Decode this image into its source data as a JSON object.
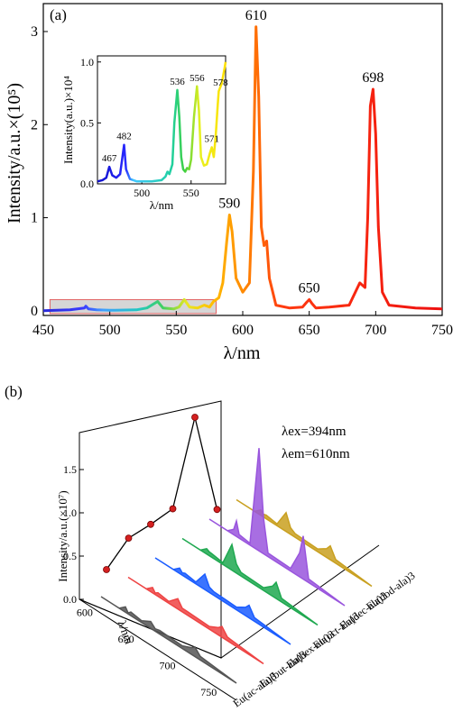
{
  "chart_data": [
    {
      "type": "line",
      "panel_label": "(a)",
      "xlabel": "λ/nm",
      "ylabel": "Intensity/a.u.×(10⁵)",
      "xlim": [
        450,
        750
      ],
      "ylim": [
        -0.05,
        3.3
      ],
      "x_ticks": [
        450,
        500,
        550,
        600,
        650,
        700,
        750
      ],
      "y_ticks": [
        0,
        1,
        2,
        3
      ],
      "series_points": [
        [
          450,
          0
        ],
        [
          470,
          0.01
        ],
        [
          481,
          0.03
        ],
        [
          482,
          0.05
        ],
        [
          484,
          0.02
        ],
        [
          490,
          0.01
        ],
        [
          500,
          0.005
        ],
        [
          520,
          0.01
        ],
        [
          528,
          0.03
        ],
        [
          536,
          0.1
        ],
        [
          540,
          0.03
        ],
        [
          548,
          0.02
        ],
        [
          552,
          0.04
        ],
        [
          556,
          0.12
        ],
        [
          560,
          0.04
        ],
        [
          566,
          0.03
        ],
        [
          571,
          0.06
        ],
        [
          575,
          0.04
        ],
        [
          578,
          0.1
        ],
        [
          582,
          0.14
        ],
        [
          585,
          0.3
        ],
        [
          588,
          0.75
        ],
        [
          590,
          1.03
        ],
        [
          592,
          0.85
        ],
        [
          595,
          0.35
        ],
        [
          600,
          0.2
        ],
        [
          605,
          0.3
        ],
        [
          608,
          1.5
        ],
        [
          610,
          3.05
        ],
        [
          612,
          2.3
        ],
        [
          614,
          0.9
        ],
        [
          616,
          0.7
        ],
        [
          618,
          0.75
        ],
        [
          620,
          0.35
        ],
        [
          625,
          0.06
        ],
        [
          635,
          0.03
        ],
        [
          645,
          0.04
        ],
        [
          648,
          0.09
        ],
        [
          650,
          0.12
        ],
        [
          652,
          0.08
        ],
        [
          655,
          0.03
        ],
        [
          665,
          0.04
        ],
        [
          680,
          0.06
        ],
        [
          688,
          0.3
        ],
        [
          692,
          0.25
        ],
        [
          694,
          1.0
        ],
        [
          696,
          2.2
        ],
        [
          698,
          2.38
        ],
        [
          700,
          1.9
        ],
        [
          702,
          0.9
        ],
        [
          705,
          0.2
        ],
        [
          710,
          0.06
        ],
        [
          730,
          0.03
        ],
        [
          750,
          0.02
        ]
      ],
      "peak_labels": [
        {
          "x": 590,
          "y": 1.03,
          "text": "590"
        },
        {
          "x": 610,
          "y": 3.05,
          "text": "610"
        },
        {
          "x": 650,
          "y": 0.12,
          "text": "650"
        },
        {
          "x": 698,
          "y": 2.38,
          "text": "698"
        }
      ],
      "highlight_range": [
        455,
        580
      ],
      "inset": {
        "xlabel": "λ/nm",
        "ylabel": "Intensity(a.u.)×10⁴",
        "xlim": [
          455,
          585
        ],
        "ylim": [
          0,
          1.05
        ],
        "x_ticks": [
          500,
          550
        ],
        "y_ticks": [
          0.0,
          0.5,
          1.0
        ],
        "y_tick_labels": [
          "0.0",
          "0.5",
          "1.0"
        ],
        "series_points": [
          [
            455,
            0.02
          ],
          [
            460,
            0.03
          ],
          [
            464,
            0.05
          ],
          [
            467,
            0.14
          ],
          [
            470,
            0.07
          ],
          [
            474,
            0.05
          ],
          [
            478,
            0.08
          ],
          [
            480,
            0.2
          ],
          [
            482,
            0.32
          ],
          [
            484,
            0.12
          ],
          [
            488,
            0.04
          ],
          [
            495,
            0.02
          ],
          [
            510,
            0.02
          ],
          [
            520,
            0.03
          ],
          [
            524,
            0.06
          ],
          [
            526,
            0.1
          ],
          [
            528,
            0.08
          ],
          [
            531,
            0.16
          ],
          [
            533,
            0.5
          ],
          [
            536,
            0.77
          ],
          [
            538,
            0.55
          ],
          [
            540,
            0.22
          ],
          [
            542,
            0.12
          ],
          [
            544,
            0.1
          ],
          [
            546,
            0.13
          ],
          [
            548,
            0.12
          ],
          [
            550,
            0.2
          ],
          [
            553,
            0.55
          ],
          [
            556,
            0.8
          ],
          [
            558,
            0.6
          ],
          [
            560,
            0.22
          ],
          [
            563,
            0.15
          ],
          [
            566,
            0.16
          ],
          [
            569,
            0.25
          ],
          [
            571,
            0.3
          ],
          [
            573,
            0.22
          ],
          [
            575,
            0.4
          ],
          [
            577,
            0.65
          ],
          [
            578,
            0.76
          ],
          [
            581,
            0.82
          ],
          [
            584,
            0.95
          ],
          [
            585,
            1.0
          ]
        ],
        "peak_labels": [
          {
            "x": 467,
            "y": 0.14,
            "text": "467"
          },
          {
            "x": 482,
            "y": 0.32,
            "text": "482"
          },
          {
            "x": 536,
            "y": 0.77,
            "text": "536"
          },
          {
            "x": 556,
            "y": 0.8,
            "text": "556"
          },
          {
            "x": 571,
            "y": 0.3,
            "text": "571"
          },
          {
            "x": 578,
            "y": 0.76,
            "text": "578"
          }
        ]
      }
    },
    {
      "type": "line",
      "panel_label": "(b)",
      "xlabel": "λ/nm",
      "ylabel": "Intensity/a.u.(×10⁷)",
      "x_ticks": [
        600,
        650,
        700,
        750
      ],
      "y_ticks": [
        0.0,
        0.5,
        1.0,
        1.5
      ],
      "y_tick_labels": [
        "0.0",
        "0.5",
        "1.0",
        "1.5"
      ],
      "annotations": [
        "λex=394nm",
        "λem=610nm"
      ],
      "categories": [
        "Eu(ac-ala)3",
        "Eu(but-ala)3",
        "Eu(hex-ala)3",
        "Eu(oct-ala)3",
        "Eu(dec-ala)3",
        "Eu(dod-ala)3"
      ],
      "category_colors": [
        "#555555",
        "#ee4444",
        "#1a5cff",
        "#1fa850",
        "#9955dd",
        "#c9a020"
      ],
      "intensity_610": [
        0.32,
        0.62,
        0.72,
        0.84,
        1.82,
        0.72
      ],
      "spectra_610_peak": [
        0.08,
        0.12,
        0.18,
        0.3,
        1.2,
        0.22
      ]
    }
  ]
}
